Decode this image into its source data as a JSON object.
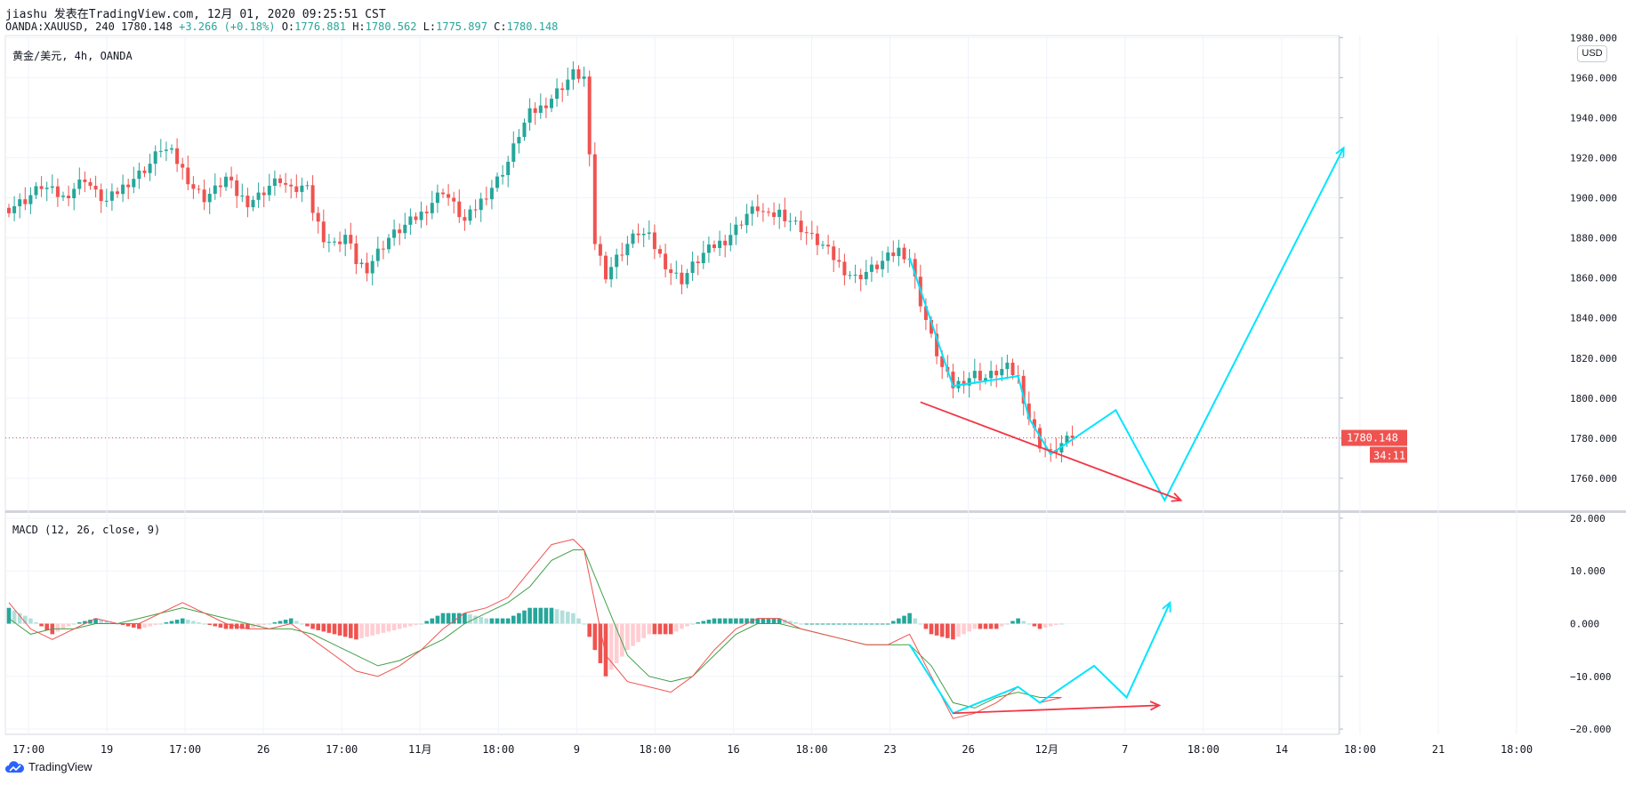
{
  "header": {
    "line1": "jiashu 发表在TradingView.com, 12月 01, 2020 09:25:51 CST",
    "symbol_info": "OANDA:XAUUSD, 240",
    "last": "1780.148",
    "change": "+3.266 (+0.18%)",
    "o_key": "O:",
    "o_val": "1776.881",
    "h_key": "H:",
    "h_val": "1780.562",
    "l_key": "L:",
    "l_val": "1775.897",
    "c_key": "C:",
    "c_val": "1780.148"
  },
  "pane_labels": {
    "symbol": "黄金/美元, 4h, OANDA",
    "macd": "MACD (12, 26, close, 9)",
    "currency": "USD"
  },
  "footer": {
    "brand": "TradingView"
  },
  "colors": {
    "up": "#26a69a",
    "down": "#ef5350",
    "cyan": "#00e5ff",
    "red_line": "#f23645",
    "grid": "#f0f3fa",
    "axis_text": "#131722",
    "macd_line": "#ef5350",
    "signal_line": "#43a047"
  },
  "chart_data": [
    {
      "type": "candlestick",
      "title": "黄金/美元, 4h, OANDA",
      "currency": "USD",
      "ylim": [
        1744,
        1981
      ],
      "y_ticks": [
        1760,
        1780,
        1800,
        1820,
        1840,
        1860,
        1880,
        1900,
        1920,
        1940,
        1960,
        1980
      ],
      "y_tick_labels": [
        "1760.000",
        "1780.000",
        "1800.000",
        "1820.000",
        "1840.000",
        "1860.000",
        "1880.000",
        "1900.000",
        "1920.000",
        "1940.000",
        "1960.000",
        "1980.000"
      ],
      "x_tick_labels": [
        "17:00",
        "19",
        "17:00",
        "26",
        "17:00",
        "11月",
        "18:00",
        "9",
        "18:00",
        "16",
        "18:00",
        "23",
        "26",
        "12月",
        "7",
        "18:00",
        "14",
        "18:00",
        "21",
        "18:00"
      ],
      "close_path": [
        [
          0,
          1895
        ],
        [
          3,
          1899
        ],
        [
          6,
          1906
        ],
        [
          8,
          1903
        ],
        [
          10,
          1900
        ],
        [
          12,
          1905
        ],
        [
          14,
          1910
        ],
        [
          16,
          1902
        ],
        [
          18,
          1898
        ],
        [
          20,
          1903
        ],
        [
          22,
          1908
        ],
        [
          24,
          1912
        ],
        [
          26,
          1917
        ],
        [
          28,
          1925
        ],
        [
          30,
          1922
        ],
        [
          32,
          1914
        ],
        [
          34,
          1905
        ],
        [
          36,
          1900
        ],
        [
          38,
          1904
        ],
        [
          40,
          1910
        ],
        [
          42,
          1902
        ],
        [
          44,
          1898
        ],
        [
          46,
          1901
        ],
        [
          48,
          1906
        ],
        [
          50,
          1909
        ],
        [
          52,
          1903
        ],
        [
          54,
          1905
        ],
        [
          55,
          1909
        ],
        [
          56,
          1893
        ],
        [
          58,
          1880
        ],
        [
          60,
          1876
        ],
        [
          62,
          1881
        ],
        [
          64,
          1868
        ],
        [
          66,
          1865
        ],
        [
          68,
          1873
        ],
        [
          70,
          1880
        ],
        [
          72,
          1884
        ],
        [
          74,
          1888
        ],
        [
          76,
          1892
        ],
        [
          78,
          1898
        ],
        [
          80,
          1904
        ],
        [
          82,
          1896
        ],
        [
          84,
          1888
        ],
        [
          86,
          1895
        ],
        [
          88,
          1902
        ],
        [
          90,
          1909
        ],
        [
          92,
          1918
        ],
        [
          94,
          1932
        ],
        [
          96,
          1942
        ],
        [
          98,
          1945
        ],
        [
          100,
          1950
        ],
        [
          102,
          1956
        ],
        [
          104,
          1962
        ],
        [
          106,
          1960
        ],
        [
          108,
          1878
        ],
        [
          110,
          1862
        ],
        [
          112,
          1870
        ],
        [
          114,
          1877
        ],
        [
          116,
          1883
        ],
        [
          118,
          1880
        ],
        [
          120,
          1871
        ],
        [
          122,
          1863
        ],
        [
          124,
          1859
        ],
        [
          126,
          1866
        ],
        [
          128,
          1872
        ],
        [
          130,
          1876
        ],
        [
          132,
          1879
        ],
        [
          134,
          1885
        ],
        [
          136,
          1892
        ],
        [
          138,
          1895
        ],
        [
          140,
          1890
        ],
        [
          142,
          1893
        ],
        [
          144,
          1889
        ],
        [
          146,
          1885
        ],
        [
          148,
          1880
        ],
        [
          150,
          1876
        ],
        [
          152,
          1870
        ],
        [
          154,
          1864
        ],
        [
          156,
          1860
        ],
        [
          158,
          1863
        ],
        [
          160,
          1866
        ],
        [
          162,
          1870
        ],
        [
          164,
          1874
        ],
        [
          166,
          1870
        ],
        [
          168,
          1848
        ],
        [
          170,
          1830
        ],
        [
          172,
          1815
        ],
        [
          174,
          1806
        ],
        [
          176,
          1809
        ],
        [
          178,
          1812
        ],
        [
          180,
          1810
        ],
        [
          182,
          1813
        ],
        [
          184,
          1815
        ],
        [
          186,
          1810
        ],
        [
          188,
          1790
        ],
        [
          190,
          1777
        ],
        [
          192,
          1772
        ],
        [
          194,
          1777
        ],
        [
          196,
          1780.148
        ]
      ],
      "last_price_label": "1780.148",
      "countdown_label": "34:11",
      "annotations": {
        "cyan_path": [
          [
            166,
            1870
          ],
          [
            174,
            1806
          ],
          [
            186,
            1811
          ],
          [
            188,
            1790
          ],
          [
            192,
            1772
          ],
          [
            204,
            1794
          ],
          [
            213,
            1749
          ],
          [
            246,
            1925
          ]
        ],
        "red_arrow": [
          [
            168,
            1798
          ],
          [
            216,
            1749
          ]
        ]
      }
    },
    {
      "type": "macd",
      "title": "MACD (12, 26, close, 9)",
      "ylim": [
        -21,
        21
      ],
      "y_ticks": [
        -20,
        -10,
        0,
        10,
        20
      ],
      "y_tick_labels": [
        "−20.000",
        "−10.000",
        "0.000",
        "10.000",
        "20.000"
      ],
      "macd_path": [
        [
          0,
          4
        ],
        [
          4,
          -1
        ],
        [
          8,
          -3
        ],
        [
          12,
          -1
        ],
        [
          16,
          1
        ],
        [
          20,
          0
        ],
        [
          24,
          0
        ],
        [
          28,
          2
        ],
        [
          32,
          4
        ],
        [
          36,
          2
        ],
        [
          40,
          0
        ],
        [
          44,
          -1
        ],
        [
          48,
          -1
        ],
        [
          52,
          0
        ],
        [
          56,
          -3
        ],
        [
          60,
          -6
        ],
        [
          64,
          -9
        ],
        [
          68,
          -10
        ],
        [
          72,
          -8
        ],
        [
          76,
          -5
        ],
        [
          80,
          -1
        ],
        [
          84,
          2
        ],
        [
          88,
          3
        ],
        [
          92,
          5
        ],
        [
          96,
          10
        ],
        [
          100,
          15
        ],
        [
          104,
          16
        ],
        [
          106,
          14
        ],
        [
          110,
          -6
        ],
        [
          114,
          -11
        ],
        [
          118,
          -12
        ],
        [
          122,
          -13
        ],
        [
          126,
          -10
        ],
        [
          130,
          -5
        ],
        [
          134,
          -1
        ],
        [
          138,
          1
        ],
        [
          142,
          1
        ],
        [
          146,
          -1
        ],
        [
          150,
          -2
        ],
        [
          154,
          -3
        ],
        [
          158,
          -4
        ],
        [
          162,
          -4
        ],
        [
          166,
          -2
        ],
        [
          170,
          -10
        ],
        [
          174,
          -18
        ],
        [
          178,
          -17
        ],
        [
          182,
          -15
        ],
        [
          186,
          -12
        ],
        [
          190,
          -15
        ],
        [
          194,
          -14
        ]
      ],
      "signal_path": [
        [
          0,
          1
        ],
        [
          4,
          -2
        ],
        [
          8,
          -1
        ],
        [
          12,
          -1
        ],
        [
          16,
          0
        ],
        [
          20,
          0
        ],
        [
          24,
          1
        ],
        [
          28,
          2
        ],
        [
          32,
          3
        ],
        [
          36,
          2
        ],
        [
          40,
          1
        ],
        [
          44,
          0
        ],
        [
          48,
          -1
        ],
        [
          52,
          -1
        ],
        [
          56,
          -2
        ],
        [
          60,
          -4
        ],
        [
          64,
          -6
        ],
        [
          68,
          -8
        ],
        [
          72,
          -7
        ],
        [
          76,
          -5
        ],
        [
          80,
          -3
        ],
        [
          84,
          0
        ],
        [
          88,
          2
        ],
        [
          92,
          4
        ],
        [
          96,
          7
        ],
        [
          100,
          12
        ],
        [
          104,
          14
        ],
        [
          106,
          14
        ],
        [
          110,
          4
        ],
        [
          114,
          -6
        ],
        [
          118,
          -10
        ],
        [
          122,
          -11
        ],
        [
          126,
          -10
        ],
        [
          130,
          -6
        ],
        [
          134,
          -2
        ],
        [
          138,
          0
        ],
        [
          142,
          0
        ],
        [
          146,
          -1
        ],
        [
          150,
          -2
        ],
        [
          154,
          -3
        ],
        [
          158,
          -4
        ],
        [
          162,
          -4
        ],
        [
          166,
          -4
        ],
        [
          170,
          -8
        ],
        [
          174,
          -15
        ],
        [
          178,
          -16
        ],
        [
          182,
          -14
        ],
        [
          186,
          -13
        ],
        [
          190,
          -14
        ],
        [
          194,
          -14
        ]
      ],
      "annotations": {
        "cyan_path": [
          [
            166,
            -4
          ],
          [
            174,
            -17
          ],
          [
            186,
            -12
          ],
          [
            190,
            -15
          ],
          [
            200,
            -8
          ],
          [
            206,
            -14
          ],
          [
            214,
            4
          ]
        ],
        "red_arrow": [
          [
            174,
            -17
          ],
          [
            212,
            -15.5
          ]
        ]
      }
    }
  ]
}
